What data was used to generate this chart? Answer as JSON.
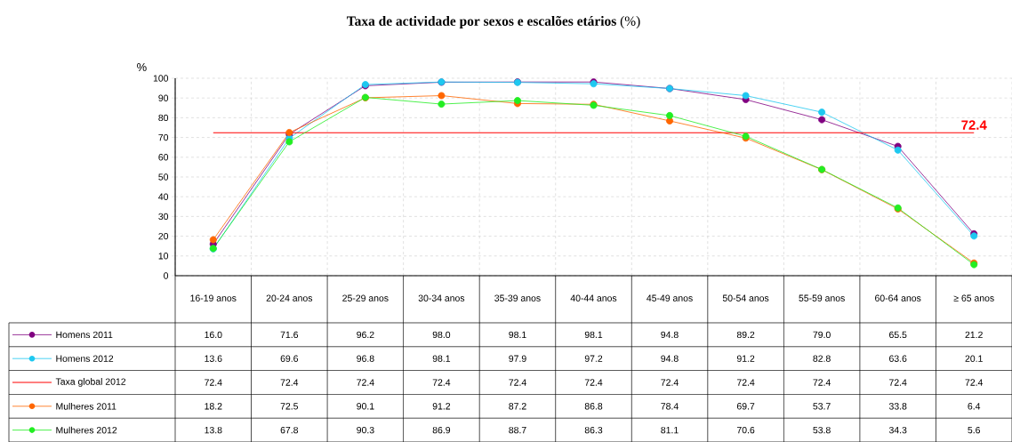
{
  "chart_data": {
    "type": "line",
    "title": "**Taxa de actividade por sexos e escalões etários** (%)",
    "ylabel": "%",
    "categories": [
      "16-19 anos",
      "20-24 anos",
      "25-29 anos",
      "30-34 anos",
      "35-39 anos",
      "40-44 anos",
      "45-49 anos",
      "50-54 anos",
      "55-59 anos",
      "60-64 anos",
      "≥ 65 anos"
    ],
    "series": [
      {
        "name": "Homens 2011",
        "color": "#800080",
        "values": [
          16.0,
          71.6,
          96.2,
          98.0,
          98.1,
          98.1,
          94.8,
          89.2,
          79.0,
          65.5,
          21.2
        ],
        "value_labels": [
          "16.0",
          "71.6",
          "96.2",
          "98.0",
          "98.1",
          "98.1",
          "94.8",
          "89.2",
          "79.0",
          "65.5",
          "21.2"
        ]
      },
      {
        "name": "Homens 2012",
        "color": "#1ec8f0",
        "values": [
          13.6,
          69.6,
          96.8,
          98.1,
          97.9,
          97.2,
          94.8,
          91.2,
          82.8,
          63.6,
          20.1
        ],
        "value_labels": [
          "13.6",
          "69.6",
          "96.8",
          "98.1",
          "97.9",
          "97.2",
          "94.8",
          "91.2",
          "82.8",
          "63.6",
          "20.1"
        ]
      },
      {
        "name": "Taxa global 2012",
        "color": "#ff0000",
        "marker": "none",
        "values": [
          72.4,
          72.4,
          72.4,
          72.4,
          72.4,
          72.4,
          72.4,
          72.4,
          72.4,
          72.4,
          72.4
        ],
        "value_labels": [
          "72.4",
          "72.4",
          "72.4",
          "72.4",
          "72.4",
          "72.4",
          "72.4",
          "72.4",
          "72.4",
          "72.4",
          "72.4"
        ]
      },
      {
        "name": "Mulheres 2011",
        "color": "#ff6600",
        "values": [
          18.2,
          72.5,
          90.1,
          91.2,
          87.2,
          86.8,
          78.4,
          69.7,
          53.7,
          33.8,
          6.4
        ],
        "value_labels": [
          "18.2",
          "72.5",
          "90.1",
          "91.2",
          "87.2",
          "86.8",
          "78.4",
          "69.7",
          "53.7",
          "33.8",
          "6.4"
        ]
      },
      {
        "name": "Mulheres 2012",
        "color": "#22ee22",
        "values": [
          13.8,
          67.8,
          90.3,
          86.9,
          88.7,
          86.3,
          81.1,
          70.6,
          53.8,
          34.3,
          5.6
        ],
        "value_labels": [
          "13.8",
          "67.8",
          "90.3",
          "86.9",
          "88.7",
          "86.3",
          "81.1",
          "70.6",
          "53.8",
          "34.3",
          "5.6"
        ]
      }
    ],
    "annotations": [
      {
        "text": "72.4",
        "x": "≥ 65 anos",
        "y": 72.4
      }
    ],
    "ylim": [
      0,
      100
    ],
    "yticks": [
      0,
      10,
      20,
      30,
      40,
      50,
      60,
      70,
      80,
      90,
      100
    ],
    "grid": true,
    "legend": "bottom",
    "marker": "circle"
  }
}
